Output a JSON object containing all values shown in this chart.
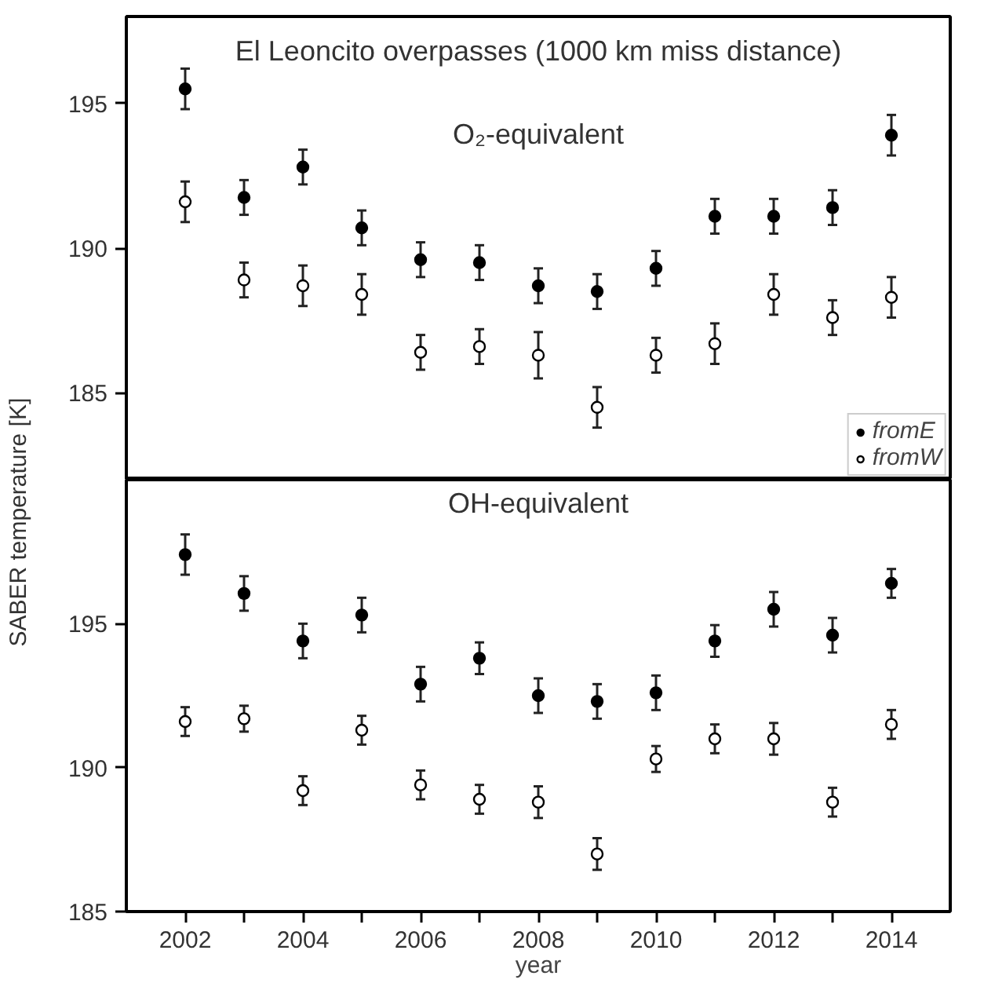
{
  "chart_data": [
    {
      "type": "scatter",
      "title": "El Leoncito overpasses (1000 km miss distance)",
      "subtitle": "O₂-equivalent",
      "ylabel": "SABER temperature  [K]",
      "x": [
        2002,
        2003,
        2004,
        2005,
        2006,
        2007,
        2008,
        2009,
        2010,
        2011,
        2012,
        2013,
        2014
      ],
      "series": [
        {
          "name": "fromE",
          "color": "#000000",
          "values": [
            195.5,
            191.75,
            192.8,
            190.7,
            189.6,
            189.5,
            188.7,
            188.5,
            189.3,
            191.1,
            191.1,
            191.4,
            193.9
          ],
          "errors": [
            0.7,
            0.6,
            0.6,
            0.6,
            0.6,
            0.6,
            0.6,
            0.6,
            0.6,
            0.6,
            0.6,
            0.6,
            0.7
          ]
        },
        {
          "name": "fromW",
          "color": "#ffffff",
          "values": [
            191.6,
            188.9,
            188.7,
            188.4,
            186.4,
            186.6,
            186.3,
            184.5,
            186.3,
            186.7,
            188.4,
            187.6,
            188.3
          ],
          "errors": [
            0.7,
            0.6,
            0.7,
            0.7,
            0.6,
            0.6,
            0.8,
            0.7,
            0.6,
            0.7,
            0.7,
            0.6,
            0.7
          ]
        }
      ],
      "xlim": [
        2001,
        2015
      ],
      "ylim": [
        182,
        198
      ],
      "yticks": [
        185,
        190,
        195
      ],
      "tick_labels": "y",
      "marker": "circle",
      "legend": "bottom right",
      "grid": false
    },
    {
      "type": "scatter",
      "title": "OH-equivalent",
      "xlabel": "year",
      "x": [
        2002,
        2003,
        2004,
        2005,
        2006,
        2007,
        2008,
        2009,
        2010,
        2011,
        2012,
        2013,
        2014
      ],
      "series": [
        {
          "color": "#000000",
          "values": [
            197.4,
            196.05,
            194.4,
            195.3,
            192.9,
            193.8,
            192.5,
            192.3,
            192.6,
            194.4,
            195.5,
            194.6,
            196.4
          ],
          "errors": [
            0.7,
            0.6,
            0.6,
            0.6,
            0.6,
            0.55,
            0.6,
            0.6,
            0.6,
            0.55,
            0.6,
            0.6,
            0.5
          ]
        },
        {
          "color": "#ffffff",
          "values": [
            191.6,
            191.7,
            189.2,
            191.3,
            189.4,
            188.9,
            188.8,
            187.0,
            190.3,
            191.0,
            191.0,
            188.8,
            191.5
          ],
          "errors": [
            0.5,
            0.45,
            0.5,
            0.5,
            0.5,
            0.5,
            0.55,
            0.55,
            0.45,
            0.5,
            0.55,
            0.5,
            0.5
          ]
        }
      ],
      "xlim": [
        2001,
        2015
      ],
      "xticks": [
        2002,
        {
          "value": 2003,
          "label": null
        },
        2004,
        {
          "value": 2005,
          "label": null
        },
        2006,
        {
          "value": 2007,
          "label": null
        },
        2008,
        {
          "value": 2009,
          "label": null
        },
        2010,
        {
          "value": 2011,
          "label": null
        },
        2012,
        {
          "value": 2013,
          "label": null
        },
        2014
      ],
      "ylim": [
        185,
        200
      ],
      "yticks": [
        185,
        190,
        195
      ],
      "marker": "circle",
      "grid": false
    }
  ]
}
